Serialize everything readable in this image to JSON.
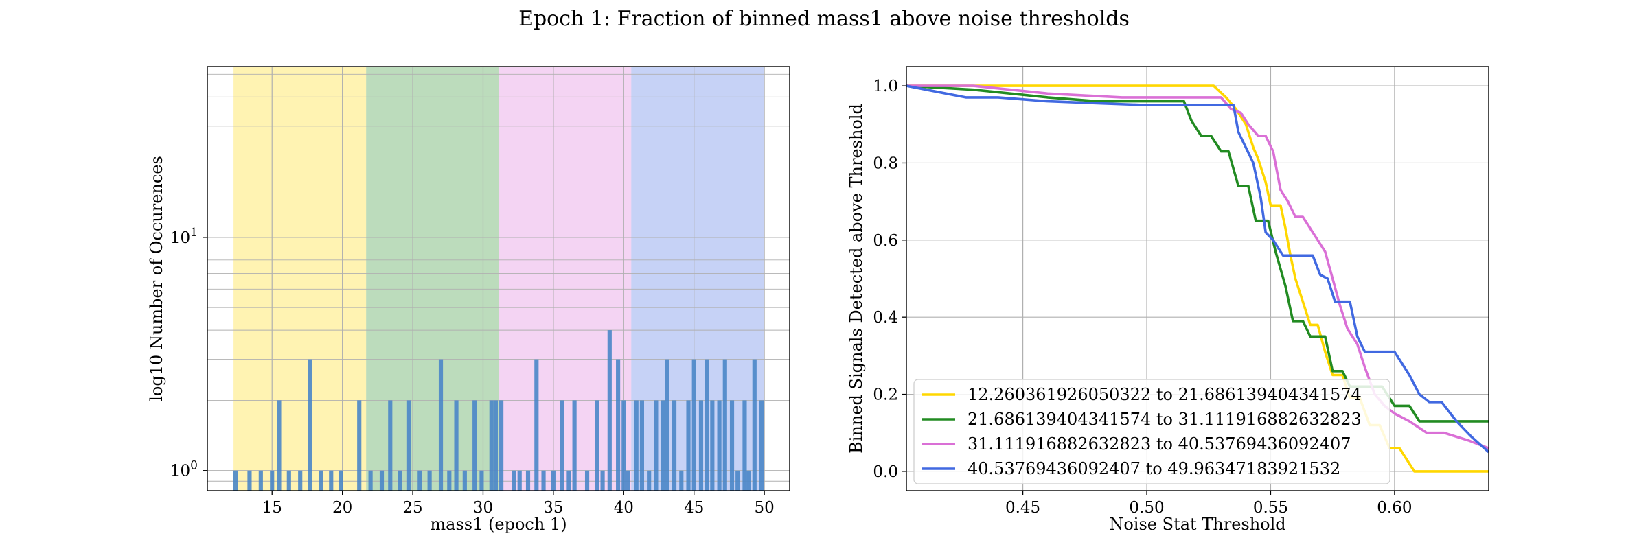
{
  "figure": {
    "title": "Epoch 1: Fraction of binned mass1 above noise thresholds"
  },
  "chart_data": [
    {
      "type": "bar",
      "subtype": "histogram",
      "xlabel": "mass1 (epoch 1)",
      "ylabel": "log10 Number of Occurences",
      "yscale": "log",
      "xlim": [
        10.4,
        51.8
      ],
      "ylim": [
        0.82,
        54
      ],
      "xticks": [
        15,
        20,
        25,
        30,
        35,
        40,
        45,
        50
      ],
      "yticks": [
        {
          "value": 1,
          "label": "10^0"
        },
        {
          "value": 10,
          "label": "10^1"
        }
      ],
      "grid": true,
      "bands": [
        {
          "range": [
            12.260361926050322,
            21.686139404341574
          ],
          "color": "#FFD700"
        },
        {
          "range": [
            21.686139404341574,
            31.111916882632823
          ],
          "color": "#228B22"
        },
        {
          "range": [
            31.111916882632823,
            40.53769436092407
          ],
          "color": "#DA70D6"
        },
        {
          "range": [
            40.53769436092407,
            49.96347183921532
          ],
          "color": "#4169E1"
        }
      ],
      "bar_color": "#4a86c8",
      "bar_width": 0.3,
      "x": [
        12.4,
        13.4,
        14.2,
        15.0,
        15.5,
        16.2,
        17.0,
        17.7,
        18.5,
        19.2,
        19.9,
        21.2,
        22.0,
        22.8,
        23.4,
        24.1,
        24.7,
        25.5,
        26.2,
        27.0,
        27.6,
        28.1,
        28.7,
        29.4,
        29.9,
        30.6,
        30.9,
        31.3,
        32.2,
        32.6,
        33.2,
        33.8,
        34.3,
        35.0,
        35.6,
        36.1,
        36.5,
        37.4,
        38.1,
        38.5,
        39.0,
        39.6,
        40.0,
        40.3,
        40.9,
        41.3,
        41.8,
        42.3,
        42.8,
        43.1,
        43.6,
        44.1,
        44.6,
        45.0,
        45.5,
        45.9,
        46.3,
        46.8,
        47.2,
        47.7,
        48.1,
        48.6,
        48.9,
        49.3,
        49.8
      ],
      "values": [
        1,
        1,
        1,
        1,
        2,
        1,
        1,
        3,
        1,
        1,
        1,
        2,
        1,
        1,
        2,
        1,
        2,
        1,
        1,
        3,
        1,
        2,
        1,
        2,
        1,
        2,
        2,
        2,
        1,
        1,
        1,
        3,
        1,
        1,
        2,
        1,
        2,
        1,
        2,
        1,
        4,
        3,
        2,
        1,
        2,
        2,
        1,
        2,
        2,
        3,
        2,
        1,
        2,
        3,
        2,
        3,
        2,
        2,
        3,
        2,
        1,
        2,
        1,
        3,
        2
      ]
    },
    {
      "type": "line",
      "xlabel": "Noise Stat Threshold",
      "ylabel": "Binned Signals Detected above Threshold",
      "xlim": [
        0.403,
        0.638
      ],
      "ylim": [
        -0.05,
        1.05
      ],
      "xticks": [
        0.45,
        0.5,
        0.55,
        0.6
      ],
      "yticks": [
        0.0,
        0.2,
        0.4,
        0.6,
        0.8,
        1.0
      ],
      "grid": true,
      "legend_position": "lower-left",
      "series": [
        {
          "name": "12.260361926050322 to 21.686139404341574",
          "color": "#FFD700",
          "points": [
            [
              0.403,
              1.0
            ],
            [
              0.527,
              1.0
            ],
            [
              0.532,
              0.97
            ],
            [
              0.536,
              0.94
            ],
            [
              0.54,
              0.9
            ],
            [
              0.543,
              0.84
            ],
            [
              0.545,
              0.81
            ],
            [
              0.548,
              0.75
            ],
            [
              0.55,
              0.69
            ],
            [
              0.554,
              0.69
            ],
            [
              0.556,
              0.63
            ],
            [
              0.558,
              0.56
            ],
            [
              0.56,
              0.5
            ],
            [
              0.563,
              0.44
            ],
            [
              0.566,
              0.38
            ],
            [
              0.569,
              0.38
            ],
            [
              0.572,
              0.31
            ],
            [
              0.575,
              0.25
            ],
            [
              0.579,
              0.25
            ],
            [
              0.582,
              0.19
            ],
            [
              0.586,
              0.19
            ],
            [
              0.59,
              0.12
            ],
            [
              0.594,
              0.12
            ],
            [
              0.598,
              0.06
            ],
            [
              0.602,
              0.06
            ],
            [
              0.608,
              0.0
            ],
            [
              0.638,
              0.0
            ]
          ]
        },
        {
          "name": "21.686139404341574 to 31.111916882632823",
          "color": "#228B22",
          "points": [
            [
              0.403,
              1.0
            ],
            [
              0.43,
              0.99
            ],
            [
              0.46,
              0.97
            ],
            [
              0.48,
              0.96
            ],
            [
              0.515,
              0.96
            ],
            [
              0.518,
              0.91
            ],
            [
              0.522,
              0.87
            ],
            [
              0.526,
              0.87
            ],
            [
              0.53,
              0.83
            ],
            [
              0.533,
              0.83
            ],
            [
              0.537,
              0.74
            ],
            [
              0.541,
              0.74
            ],
            [
              0.544,
              0.65
            ],
            [
              0.549,
              0.65
            ],
            [
              0.552,
              0.57
            ],
            [
              0.556,
              0.48
            ],
            [
              0.559,
              0.39
            ],
            [
              0.563,
              0.39
            ],
            [
              0.566,
              0.35
            ],
            [
              0.572,
              0.35
            ],
            [
              0.575,
              0.26
            ],
            [
              0.579,
              0.26
            ],
            [
              0.582,
              0.22
            ],
            [
              0.595,
              0.22
            ],
            [
              0.6,
              0.17
            ],
            [
              0.606,
              0.17
            ],
            [
              0.61,
              0.13
            ],
            [
              0.638,
              0.13
            ]
          ]
        },
        {
          "name": "31.111916882632823 to 40.53769436092407",
          "color": "#DA70D6",
          "points": [
            [
              0.403,
              1.0
            ],
            [
              0.43,
              1.0
            ],
            [
              0.46,
              0.98
            ],
            [
              0.49,
              0.97
            ],
            [
              0.53,
              0.97
            ],
            [
              0.534,
              0.94
            ],
            [
              0.538,
              0.93
            ],
            [
              0.541,
              0.9
            ],
            [
              0.545,
              0.87
            ],
            [
              0.548,
              0.87
            ],
            [
              0.551,
              0.83
            ],
            [
              0.554,
              0.73
            ],
            [
              0.557,
              0.7
            ],
            [
              0.56,
              0.66
            ],
            [
              0.563,
              0.66
            ],
            [
              0.566,
              0.63
            ],
            [
              0.569,
              0.6
            ],
            [
              0.572,
              0.57
            ],
            [
              0.575,
              0.5
            ],
            [
              0.578,
              0.43
            ],
            [
              0.581,
              0.37
            ],
            [
              0.585,
              0.33
            ],
            [
              0.588,
              0.27
            ],
            [
              0.592,
              0.2
            ],
            [
              0.596,
              0.17
            ],
            [
              0.6,
              0.15
            ],
            [
              0.606,
              0.13
            ],
            [
              0.613,
              0.1
            ],
            [
              0.62,
              0.1
            ],
            [
              0.63,
              0.08
            ],
            [
              0.638,
              0.06
            ]
          ]
        },
        {
          "name": "40.53769436092407 to 49.96347183921532",
          "color": "#4169E1",
          "points": [
            [
              0.403,
              1.0
            ],
            [
              0.411,
              0.99
            ],
            [
              0.419,
              0.98
            ],
            [
              0.427,
              0.97
            ],
            [
              0.44,
              0.97
            ],
            [
              0.46,
              0.96
            ],
            [
              0.48,
              0.955
            ],
            [
              0.5,
              0.95
            ],
            [
              0.52,
              0.95
            ],
            [
              0.535,
              0.95
            ],
            [
              0.537,
              0.88
            ],
            [
              0.54,
              0.84
            ],
            [
              0.543,
              0.8
            ],
            [
              0.546,
              0.71
            ],
            [
              0.548,
              0.62
            ],
            [
              0.551,
              0.6
            ],
            [
              0.555,
              0.56
            ],
            [
              0.567,
              0.56
            ],
            [
              0.57,
              0.51
            ],
            [
              0.573,
              0.5
            ],
            [
              0.576,
              0.44
            ],
            [
              0.582,
              0.44
            ],
            [
              0.585,
              0.35
            ],
            [
              0.588,
              0.31
            ],
            [
              0.6,
              0.31
            ],
            [
              0.606,
              0.25
            ],
            [
              0.61,
              0.2
            ],
            [
              0.614,
              0.18
            ],
            [
              0.619,
              0.18
            ],
            [
              0.625,
              0.13
            ],
            [
              0.631,
              0.09
            ],
            [
              0.638,
              0.05
            ]
          ]
        }
      ]
    }
  ]
}
